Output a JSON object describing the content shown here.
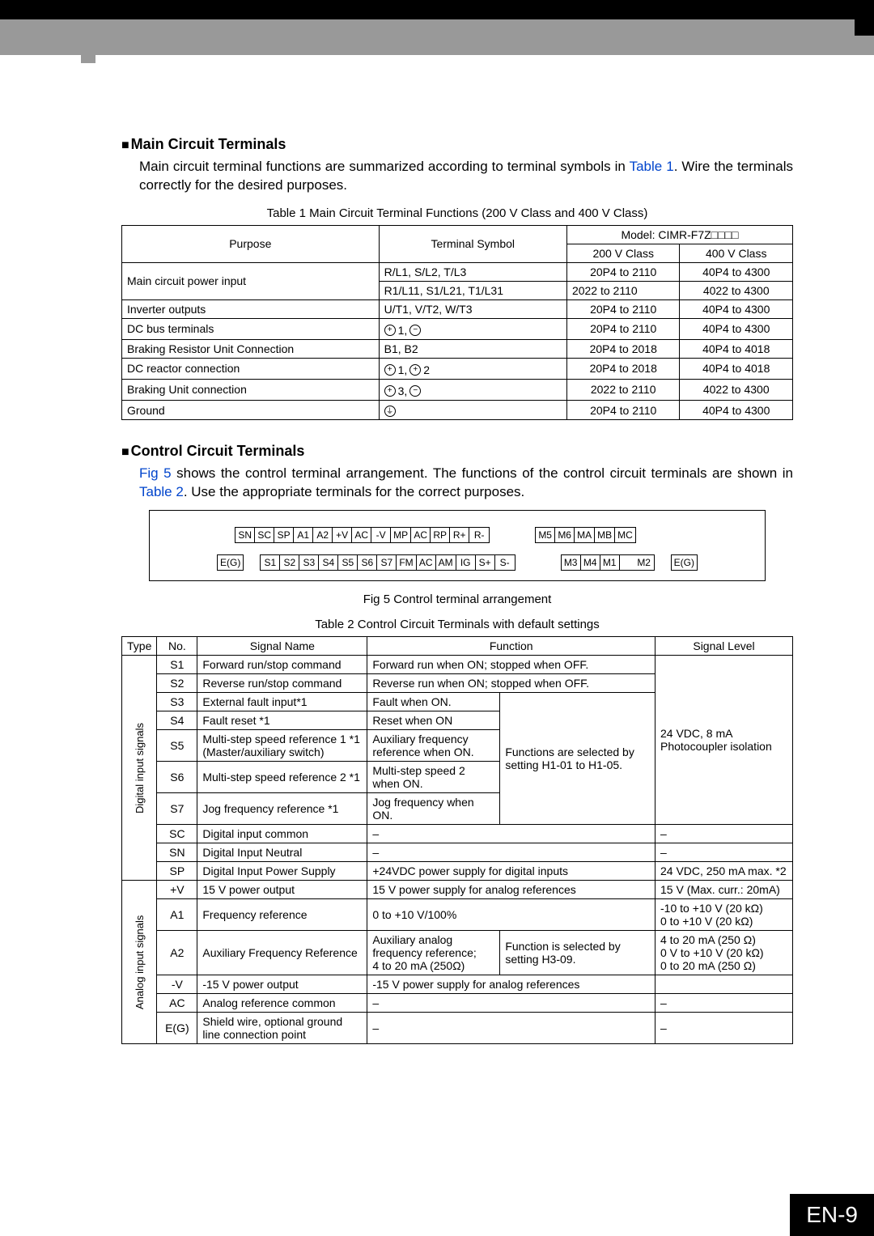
{
  "page_number": "EN-9",
  "section1": {
    "title": "Main Circuit Terminals",
    "para": "Main circuit terminal functions are summarized according to terminal symbols in ",
    "ref": "Table 1",
    "para_after": ". Wire the terminals correctly for the desired purposes.",
    "table_caption": "Table 1   Main Circuit Terminal Functions (200 V Class and 400 V Class)",
    "headers": {
      "purpose": "Purpose",
      "symbol": "Terminal Symbol",
      "model": "Model: CIMR-F7Z□□□□",
      "v200": "200 V Class",
      "v400": "400 V Class"
    },
    "rows": [
      {
        "purpose_rowspan": 2,
        "purpose": "Main circuit power input",
        "symbol": "R/L1, S/L2, T/L3",
        "v200": "20P4 to 2110",
        "v400": "40P4 to 4300"
      },
      {
        "symbol": "R1/L11, S1/L21, T1/L31",
        "v200": "2022 to 2110",
        "v400": "4022 to 4300"
      },
      {
        "purpose": "Inverter outputs",
        "symbol": "U/T1, V/T2, W/T3",
        "v200": "20P4 to 2110",
        "v400": "40P4 to 4300"
      },
      {
        "purpose": "DC bus terminals",
        "symbol_html": "plus1_minus",
        "v200": "20P4 to 2110",
        "v400": "40P4 to 4300"
      },
      {
        "purpose": "Braking Resistor Unit Connection",
        "symbol": "B1, B2",
        "v200": "20P4 to 2018",
        "v400": "40P4 to 4018"
      },
      {
        "purpose": "DC reactor connection",
        "symbol_html": "plus1_plus2",
        "v200": "20P4 to 2018",
        "v400": "40P4 to 4018"
      },
      {
        "purpose": "Braking Unit connection",
        "symbol_html": "plus3_minus",
        "v200": "2022 to 2110",
        "v400": "4022 to 4300"
      },
      {
        "purpose": "Ground",
        "symbol_html": "ground",
        "v200": "20P4 to 2110",
        "v400": "40P4 to 4300"
      }
    ]
  },
  "section2": {
    "title": "Control Circuit Terminals",
    "para_before": "",
    "ref1": "Fig 5",
    "para_mid": " shows the control terminal arrangement. The functions of the control circuit terminals are shown in ",
    "ref2": "Table 2",
    "para_after": ". Use the appropriate terminals for the correct purposes.",
    "terminal_rows": {
      "top_left": [
        "SN",
        "SC",
        "SP",
        "A1",
        "A2",
        "+V",
        "AC",
        "-V",
        "MP",
        "AC",
        "RP",
        "R+",
        "R-"
      ],
      "top_right": [
        "M5",
        "M6",
        "MA",
        "MB",
        "MC"
      ],
      "bot_left_prefix": "E(G)",
      "bot_left": [
        "S1",
        "S2",
        "S3",
        "S4",
        "S5",
        "S6",
        "S7",
        "FM",
        "AC",
        "AM",
        "IG",
        "S+",
        "S-"
      ],
      "bot_right": [
        "M3",
        "M4",
        "M1",
        "",
        "M2"
      ],
      "bot_right_suffix": "E(G)"
    },
    "fig_caption": "Fig 5  Control terminal arrangement",
    "table_caption": "Table 2  Control Circuit Terminals with default settings",
    "headers": {
      "type": "Type",
      "no": "No.",
      "name": "Signal Name",
      "func": "Function",
      "level": "Signal Level"
    },
    "groups": [
      {
        "type": "Digital input signals",
        "level_span": 7,
        "level": "24 VDC, 8 mA\nPhotocoupler isolation",
        "note_span": 5,
        "note": "Functions are selected by setting H1-01 to H1-05.",
        "rows": [
          {
            "no": "S1",
            "name": "Forward run/stop command",
            "func": "Forward run when ON; stopped when OFF.",
            "colspan": 2
          },
          {
            "no": "S2",
            "name": "Reverse run/stop command",
            "func": "Reverse run when ON; stopped when OFF.",
            "colspan": 2
          },
          {
            "no": "S3",
            "name": "External fault input*1",
            "func": "Fault when ON."
          },
          {
            "no": "S4",
            "name": "Fault reset *1",
            "func": "Reset when ON"
          },
          {
            "no": "S5",
            "name": "Multi-step speed reference 1 *1\n(Master/auxiliary switch)",
            "func": "Auxiliary frequency reference when ON."
          },
          {
            "no": "S6",
            "name": "Multi-step speed reference 2 *1",
            "func": "Multi-step speed 2 when ON."
          },
          {
            "no": "S7",
            "name": "Jog frequency reference *1",
            "func": "Jog frequency when ON."
          },
          {
            "no": "SC",
            "name": "Digital input common",
            "func": "–",
            "level": "–",
            "colspan": 2
          },
          {
            "no": "SN",
            "name": "Digital Input Neutral",
            "func": "–",
            "level": "–",
            "colspan": 2
          },
          {
            "no": "SP",
            "name": "Digital Input Power Supply",
            "func": "+24VDC power supply for digital inputs",
            "level": "24 VDC, 250 mA max. *2",
            "colspan": 2
          }
        ]
      },
      {
        "type": "Analog input signals",
        "rows": [
          {
            "no": "+V",
            "name": "15 V power output",
            "func": "15 V power supply for analog references",
            "level": "15 V (Max. curr.: 20mA)",
            "colspan": 2
          },
          {
            "no": "A1",
            "name": "Frequency reference",
            "func": "0 to +10 V/100%",
            "level": "-10 to +10 V (20 kΩ)\n0 to +10 V (20 kΩ)",
            "colspan": 2
          },
          {
            "no": "A2",
            "name": "Auxiliary Frequency Reference",
            "func": "Auxiliary analog frequency reference;\n4 to 20 mA (250Ω)",
            "note": "Function is selected by setting H3-09.",
            "level": "4 to 20 mA (250 Ω)\n0 V to +10 V (20 kΩ)\n0 to 20 mA (250 Ω)"
          },
          {
            "no": "-V",
            "name": "-15 V power output",
            "func": "-15 V power supply for analog references",
            "level": "",
            "colspan": 2
          },
          {
            "no": "AC",
            "name": "Analog reference common",
            "func": "–",
            "level": "–",
            "colspan": 2
          },
          {
            "no": "E(G)",
            "name": "Shield wire, optional ground line connection point",
            "func": "–",
            "level": "–",
            "colspan": 2
          }
        ]
      }
    ]
  }
}
